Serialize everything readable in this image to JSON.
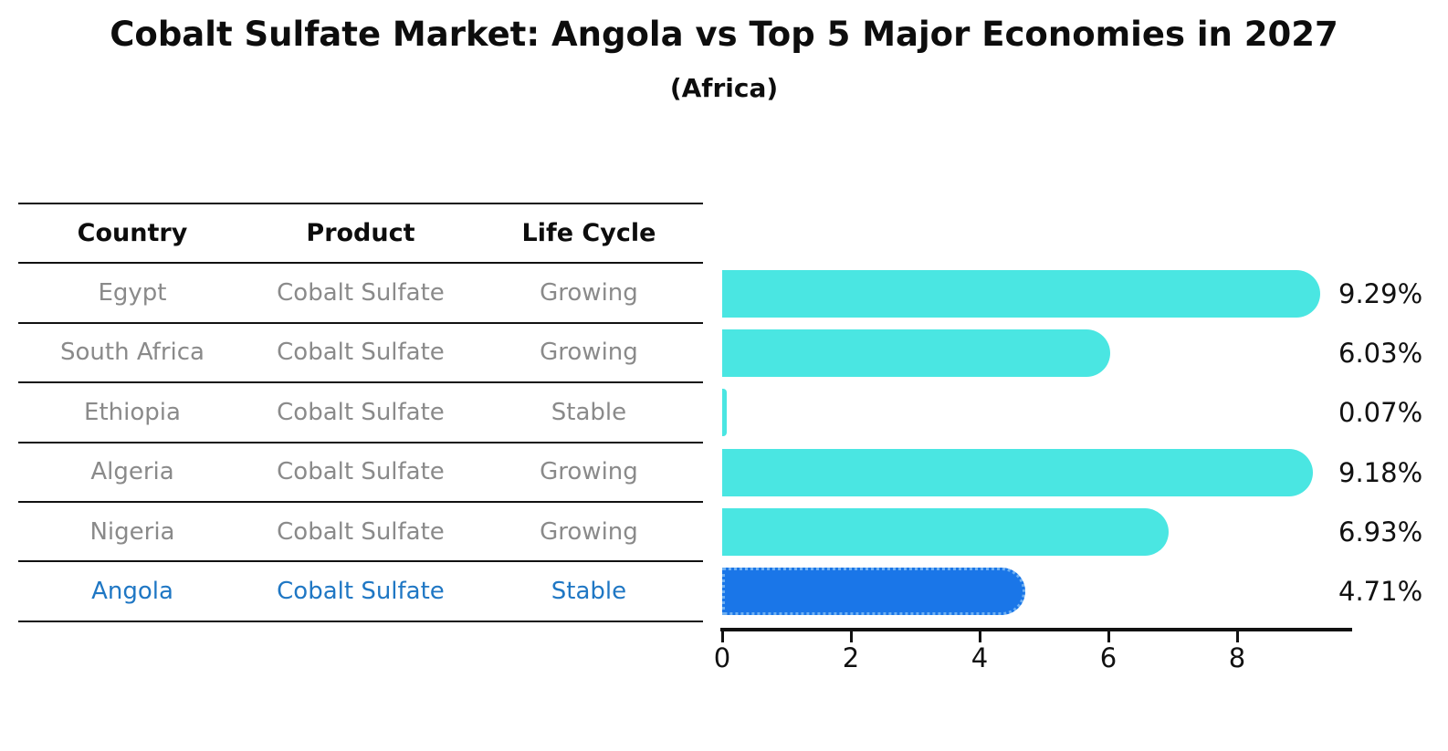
{
  "title": "Cobalt Sulfate Market: Angola vs Top 5 Major Economies in 2027",
  "subtitle": "(Africa)",
  "colors": {
    "bar_default": "#4ae6e2",
    "bar_highlight": "#1a76e8",
    "highlight_text": "#1f77c4",
    "table_text": "#8a8a8a",
    "axis": "#111111"
  },
  "table": {
    "headers": [
      "Country",
      "Product",
      "Life Cycle"
    ],
    "rows": [
      {
        "country": "Egypt",
        "product": "Cobalt Sulfate",
        "life_cycle": "Growing",
        "highlight": false
      },
      {
        "country": "South Africa",
        "product": "Cobalt Sulfate",
        "life_cycle": "Growing",
        "highlight": false
      },
      {
        "country": "Ethiopia",
        "product": "Cobalt Sulfate",
        "life_cycle": "Stable",
        "highlight": false
      },
      {
        "country": "Algeria",
        "product": "Cobalt Sulfate",
        "life_cycle": "Growing",
        "highlight": false
      },
      {
        "country": "Nigeria",
        "product": "Cobalt Sulfate",
        "life_cycle": "Growing",
        "highlight": false
      },
      {
        "country": "Angola",
        "product": "Cobalt Sulfate",
        "life_cycle": "Stable",
        "highlight": true
      }
    ]
  },
  "chart_data": {
    "type": "bar",
    "orientation": "horizontal",
    "title": "Cobalt Sulfate Market: Angola vs Top 5 Major Economies in 2027",
    "subtitle": "(Africa)",
    "categories": [
      "Egypt",
      "South Africa",
      "Ethiopia",
      "Algeria",
      "Nigeria",
      "Angola"
    ],
    "values": [
      9.29,
      6.03,
      0.07,
      9.18,
      6.93,
      4.71
    ],
    "value_labels": [
      "9.29%",
      "6.03%",
      "0.07%",
      "9.18%",
      "6.93%",
      "4.71%"
    ],
    "highlight_index": 5,
    "xlabel": "",
    "ylabel": "",
    "xlim": [
      0,
      9.8
    ],
    "xticks": [
      0,
      2,
      4,
      6,
      8
    ],
    "grid": false,
    "legend": "none"
  }
}
